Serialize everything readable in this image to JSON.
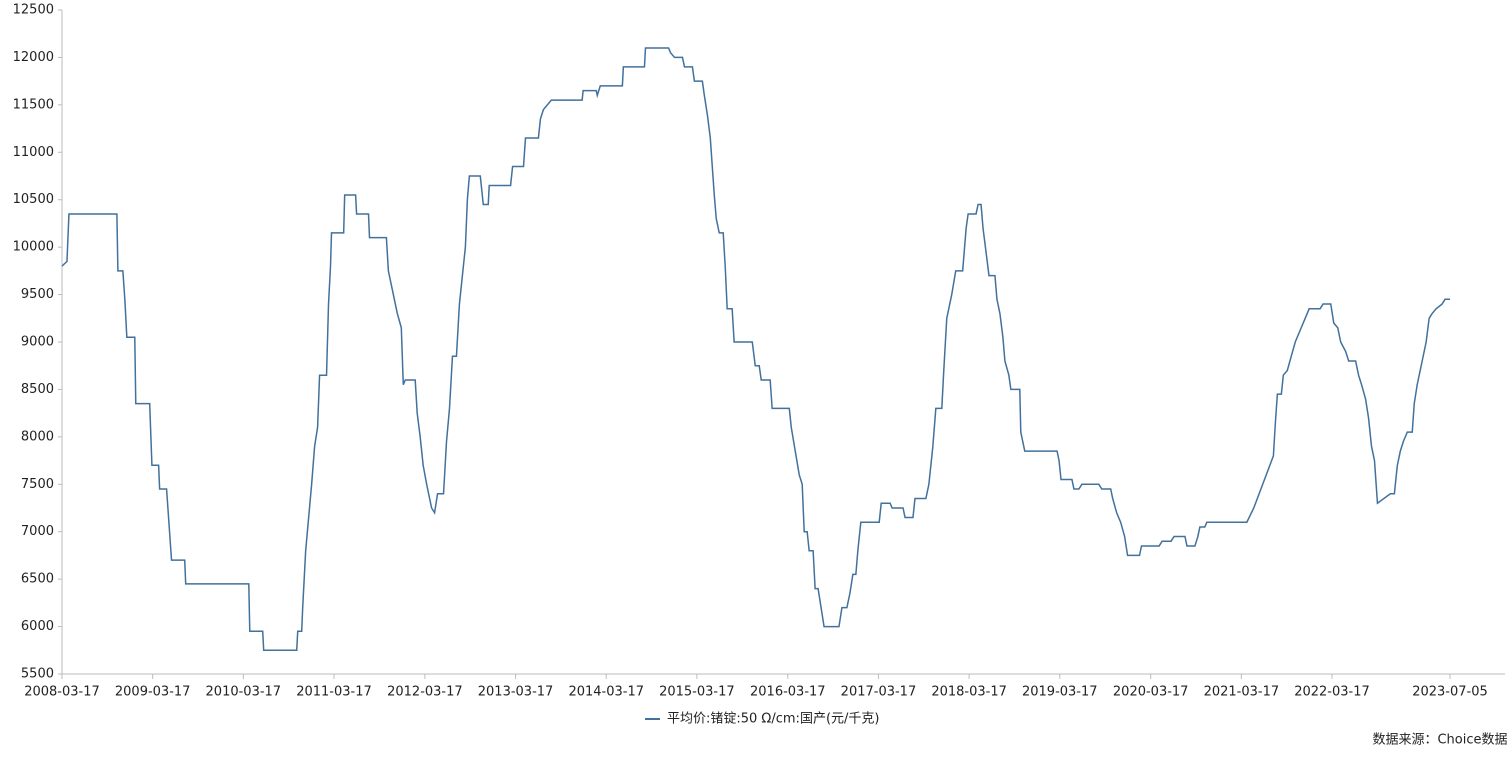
{
  "chart_data": {
    "type": "line",
    "x": [
      "2008-03-17",
      "2008-04-06",
      "2008-04-14",
      "2008-10-24",
      "2008-10-28",
      "2008-11-17",
      "2008-11-25",
      "2008-12-03",
      "2009-01-04",
      "2009-01-08",
      "2009-03-05",
      "2009-03-14",
      "2009-04-10",
      "2009-04-14",
      "2009-05-12",
      "2009-05-20",
      "2009-06-01",
      "2009-07-24",
      "2009-07-28",
      "2010-04-08",
      "2010-04-12",
      "2010-06-03",
      "2010-06-07",
      "2010-10-18",
      "2010-10-22",
      "2010-11-07",
      "2010-11-11",
      "2010-11-23",
      "2010-12-17",
      "2010-12-29",
      "2011-01-10",
      "2011-01-18",
      "2011-02-15",
      "2011-02-23",
      "2011-03-03",
      "2011-03-07",
      "2011-04-25",
      "2011-04-29",
      "2011-06-12",
      "2011-06-16",
      "2011-08-03",
      "2011-08-07",
      "2011-10-14",
      "2011-10-22",
      "2011-11-07",
      "2011-11-27",
      "2011-12-13",
      "2011-12-21",
      "2011-12-29",
      "2012-02-07",
      "2012-02-15",
      "2012-02-27",
      "2012-03-10",
      "2012-03-24",
      "2012-04-13",
      "2012-04-25",
      "2012-05-07",
      "2012-05-31",
      "2012-06-12",
      "2012-06-24",
      "2012-07-06",
      "2012-07-22",
      "2012-08-03",
      "2012-08-15",
      "2012-08-27",
      "2012-09-04",
      "2012-09-12",
      "2012-10-26",
      "2012-11-07",
      "2012-11-27",
      "2012-12-01",
      "2013-02-25",
      "2013-03-05",
      "2013-04-18",
      "2013-04-26",
      "2013-06-17",
      "2013-06-25",
      "2013-07-07",
      "2013-08-08",
      "2013-12-10",
      "2013-12-14",
      "2014-02-05",
      "2014-02-09",
      "2014-02-21",
      "2014-05-21",
      "2014-05-25",
      "2014-08-18",
      "2014-08-22",
      "2014-11-23",
      "2014-12-01",
      "2014-12-17",
      "2015-01-18",
      "2015-01-26",
      "2015-02-27",
      "2015-03-07",
      "2015-04-08",
      "2015-04-16",
      "2015-04-28",
      "2015-05-10",
      "2015-05-26",
      "2015-06-03",
      "2015-06-15",
      "2015-07-01",
      "2015-07-09",
      "2015-07-17",
      "2015-08-06",
      "2015-08-14",
      "2015-10-26",
      "2015-11-07",
      "2015-11-23",
      "2015-12-01",
      "2016-01-06",
      "2016-01-14",
      "2016-03-23",
      "2016-03-31",
      "2016-04-16",
      "2016-05-02",
      "2016-05-14",
      "2016-05-22",
      "2016-06-03",
      "2016-06-11",
      "2016-06-27",
      "2016-07-05",
      "2016-07-17",
      "2016-07-29",
      "2016-08-10",
      "2016-10-09",
      "2016-10-21",
      "2016-11-10",
      "2016-11-22",
      "2016-12-04",
      "2016-12-16",
      "2016-12-24",
      "2017-01-05",
      "2017-03-20",
      "2017-03-28",
      "2017-05-03",
      "2017-05-11",
      "2017-06-24",
      "2017-07-02",
      "2017-08-03",
      "2017-08-11",
      "2017-09-24",
      "2017-10-06",
      "2017-10-22",
      "2017-11-03",
      "2017-11-27",
      "2017-12-05",
      "2017-12-17",
      "2018-01-06",
      "2018-01-22",
      "2018-02-19",
      "2018-03-05",
      "2018-03-13",
      "2018-04-14",
      "2018-04-22",
      "2018-05-04",
      "2018-05-12",
      "2018-05-24",
      "2018-06-05",
      "2018-06-29",
      "2018-07-07",
      "2018-07-19",
      "2018-07-31",
      "2018-08-08",
      "2018-08-24",
      "2018-09-01",
      "2018-10-07",
      "2018-10-11",
      "2018-10-27",
      "2019-03-06",
      "2019-03-14",
      "2019-03-22",
      "2019-05-05",
      "2019-05-13",
      "2019-06-02",
      "2019-06-14",
      "2019-08-21",
      "2019-09-02",
      "2019-10-08",
      "2019-10-16",
      "2019-11-01",
      "2019-11-17",
      "2019-12-03",
      "2019-12-15",
      "2020-02-01",
      "2020-02-09",
      "2020-04-20",
      "2020-05-02",
      "2020-06-07",
      "2020-06-19",
      "2020-08-02",
      "2020-08-10",
      "2020-09-11",
      "2020-09-23",
      "2020-10-01",
      "2020-10-21",
      "2020-10-29",
      "2021-04-08",
      "2021-05-06",
      "2021-07-24",
      "2021-08-01",
      "2021-08-09",
      "2021-08-25",
      "2021-09-02",
      "2021-09-18",
      "2021-10-04",
      "2021-10-20",
      "2021-11-13",
      "2021-11-29",
      "2021-12-15",
      "2022-01-28",
      "2022-02-09",
      "2022-03-12",
      "2022-03-24",
      "2022-04-09",
      "2022-04-21",
      "2022-05-11",
      "2022-05-23",
      "2022-06-20",
      "2022-07-02",
      "2022-07-14",
      "2022-07-30",
      "2022-08-11",
      "2022-08-23",
      "2022-09-04",
      "2022-09-16",
      "2022-11-07",
      "2022-11-23",
      "2022-12-05",
      "2022-12-17",
      "2022-12-29",
      "2023-01-14",
      "2023-02-03",
      "2023-02-11",
      "2023-02-23",
      "2023-03-07",
      "2023-03-19",
      "2023-03-31",
      "2023-04-12",
      "2023-04-24",
      "2023-05-10",
      "2023-06-03",
      "2023-06-15",
      "2023-07-05"
    ],
    "series": [
      {
        "name": "平均价:锗锭:50 Ω/cm:国产(元/千克)",
        "color": "#41719c",
        "values": [
          9800,
          9850,
          10350,
          10350,
          9750,
          9750,
          9450,
          9050,
          9050,
          8350,
          8350,
          7700,
          7700,
          7450,
          7450,
          7150,
          6700,
          6700,
          6450,
          6450,
          5950,
          5950,
          5750,
          5750,
          5950,
          5950,
          6200,
          6800,
          7500,
          7900,
          8100,
          8650,
          8650,
          9400,
          9800,
          10150,
          10150,
          10550,
          10550,
          10350,
          10350,
          10100,
          10100,
          9750,
          9550,
          9300,
          9150,
          8550,
          8600,
          8600,
          8250,
          8000,
          7700,
          7500,
          7250,
          7200,
          7400,
          7400,
          7950,
          8300,
          8850,
          8850,
          9400,
          9700,
          10000,
          10500,
          10750,
          10750,
          10450,
          10450,
          10650,
          10650,
          10850,
          10850,
          11150,
          11150,
          11350,
          11450,
          11550,
          11550,
          11650,
          11650,
          11600,
          11700,
          11700,
          11900,
          11900,
          12100,
          12100,
          12050,
          12000,
          12000,
          11900,
          11900,
          11750,
          11750,
          11600,
          11400,
          11150,
          10550,
          10300,
          10150,
          10150,
          9800,
          9350,
          9350,
          9000,
          9000,
          8750,
          8750,
          8600,
          8600,
          8300,
          8300,
          8100,
          7850,
          7600,
          7500,
          7000,
          7000,
          6800,
          6800,
          6400,
          6400,
          6200,
          6000,
          6000,
          6200,
          6200,
          6350,
          6550,
          6550,
          6800,
          7100,
          7100,
          7300,
          7300,
          7250,
          7250,
          7150,
          7150,
          7350,
          7350,
          7500,
          7900,
          8300,
          8300,
          8700,
          9250,
          9500,
          9750,
          9750,
          10200,
          10350,
          10350,
          10450,
          10450,
          10200,
          9950,
          9700,
          9700,
          9450,
          9300,
          9050,
          8800,
          8650,
          8500,
          8500,
          8050,
          7850,
          7850,
          7750,
          7550,
          7550,
          7450,
          7450,
          7500,
          7500,
          7450,
          7450,
          7350,
          7200,
          7100,
          6950,
          6750,
          6750,
          6850,
          6850,
          6900,
          6900,
          6950,
          6950,
          6850,
          6850,
          6950,
          7050,
          7050,
          7100,
          7100,
          7250,
          7800,
          8150,
          8450,
          8450,
          8650,
          8700,
          8850,
          9000,
          9150,
          9250,
          9350,
          9350,
          9400,
          9400,
          9200,
          9150,
          9000,
          8900,
          8800,
          8800,
          8650,
          8550,
          8400,
          8200,
          7900,
          7750,
          7300,
          7400,
          7400,
          7700,
          7850,
          7950,
          8050,
          8050,
          8350,
          8550,
          8700,
          8850,
          9000,
          9250,
          9300,
          9350,
          9400,
          9450,
          9450
        ]
      }
    ],
    "xlim": [
      "2008-03-17",
      "2023-07-05"
    ],
    "xticks": [
      "2008-03-17",
      "2009-03-17",
      "2010-03-17",
      "2011-03-17",
      "2012-03-17",
      "2013-03-17",
      "2014-03-17",
      "2015-03-17",
      "2016-03-17",
      "2017-03-17",
      "2018-03-17",
      "2019-03-17",
      "2020-03-17",
      "2021-03-17",
      "2022-03-17",
      "2023-07-05"
    ],
    "ylim": [
      5500,
      12500
    ],
    "yticks": [
      5500,
      6000,
      6500,
      7000,
      7500,
      8000,
      8500,
      9000,
      9500,
      10000,
      10500,
      11000,
      11500,
      12000,
      12500
    ],
    "grid": false,
    "source": "数据来源：Choice数据"
  }
}
